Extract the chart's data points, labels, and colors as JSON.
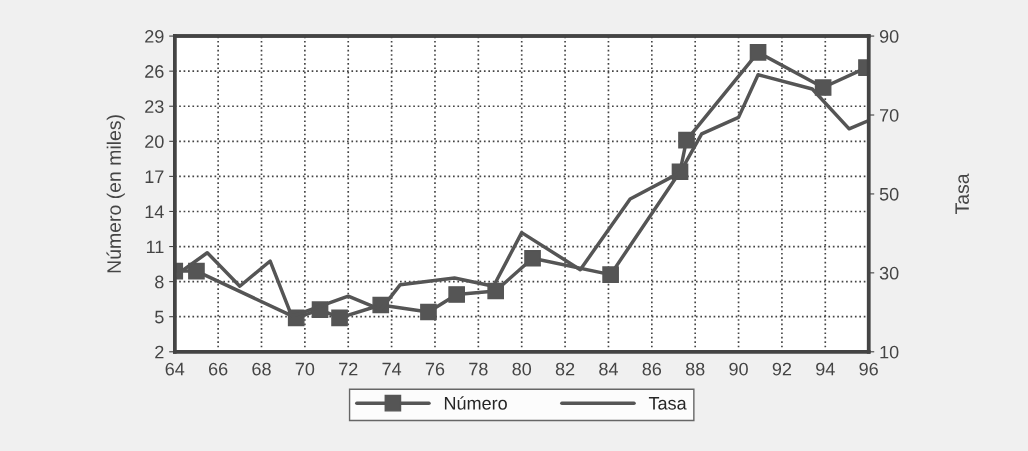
{
  "chart_data": {
    "type": "line",
    "ylabel": "Número (en miles)",
    "y2label": "Tasa",
    "xlim": [
      64,
      96
    ],
    "xticks": [
      64,
      66,
      68,
      70,
      72,
      74,
      76,
      78,
      80,
      82,
      84,
      86,
      88,
      90,
      92,
      94,
      96
    ],
    "ylim": [
      2,
      29
    ],
    "yticks": [
      2,
      5,
      8,
      11,
      14,
      17,
      20,
      23,
      26,
      29
    ],
    "y2lim": [
      10,
      90
    ],
    "y2ticks": [
      10,
      30,
      50,
      70,
      90
    ],
    "grid": true,
    "legend": "bottom",
    "series": [
      {
        "name": "Número",
        "color": "#555555",
        "marker": "square",
        "line_style": "solid",
        "x": [
          64.0,
          65.0,
          69.6,
          70.7,
          71.6,
          73.5,
          75.7,
          77.0,
          78.8,
          80.5,
          84.1,
          87.3,
          87.6,
          90.9,
          93.9,
          95.9
        ],
        "values": [
          8.9,
          8.9,
          4.9,
          5.6,
          4.9,
          6.0,
          5.4,
          6.9,
          7.2,
          10.0,
          8.6,
          17.4,
          20.1,
          27.6,
          24.6,
          26.3
        ]
      },
      {
        "name": "Tasa",
        "color": "#555555",
        "marker": "none",
        "line_style": "solid",
        "axis": "y2",
        "x": [
          64.0,
          65.5,
          67.0,
          68.4,
          69.4,
          72.0,
          73.5,
          74.4,
          76.9,
          78.7,
          80.0,
          82.7,
          85.0,
          87.3,
          88.3,
          90.0,
          90.9,
          93.4,
          95.1,
          96.0
        ],
        "values": [
          29.2,
          35.1,
          26.6,
          33.0,
          19.0,
          24.1,
          20.7,
          27.0,
          28.7,
          26.6,
          40.2,
          30.8,
          48.7,
          55.4,
          65.2,
          69.4,
          80.2,
          76.6,
          66.5,
          68.6
        ]
      }
    ]
  }
}
